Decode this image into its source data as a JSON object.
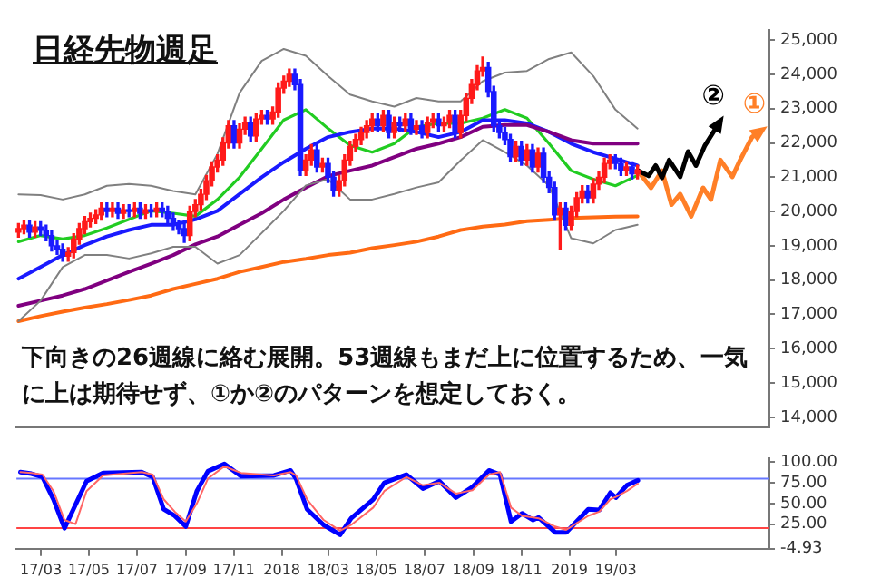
{
  "chart_data": [
    {
      "type": "candlestick",
      "title": "日経先物週足",
      "annotations": [
        "下向きの26週線に絡む展開。53週線もまだ上に位置するため、一気に上は期待せず、①か②のパターンを想定しておく。"
      ],
      "tick_labels": "y",
      "marker": "none",
      "xlim": [
        "2017-01-29",
        "2019-09-12"
      ],
      "ylim": [
        13700,
        25300
      ],
      "yticks": [
        {
          "value": 14000,
          "label": "14,000"
        },
        {
          "value": 15000,
          "label": "15,000"
        },
        {
          "value": 16000,
          "label": "16,000"
        },
        {
          "value": 17000,
          "label": "17,000"
        },
        {
          "value": 18000,
          "label": "18,000"
        },
        {
          "value": 19000,
          "label": "19,000"
        },
        {
          "value": 20000,
          "label": "20,000"
        },
        {
          "value": 21000,
          "label": "21,000"
        },
        {
          "value": 22000,
          "label": "22,000"
        },
        {
          "value": 23000,
          "label": "23,000"
        },
        {
          "value": 24000,
          "label": "24,000"
        },
        {
          "value": 25000,
          "label": "25,000"
        }
      ],
      "x": [
        "2017-02-03",
        "2017-02-10",
        "2017-02-17",
        "2017-02-24",
        "2017-03-03",
        "2017-03-10",
        "2017-03-17",
        "2017-03-24",
        "2017-03-31",
        "2017-04-07",
        "2017-04-14",
        "2017-04-21",
        "2017-04-28",
        "2017-05-05",
        "2017-05-12",
        "2017-05-19",
        "2017-05-26",
        "2017-06-02",
        "2017-06-09",
        "2017-06-16",
        "2017-06-23",
        "2017-06-30",
        "2017-07-07",
        "2017-07-14",
        "2017-07-21",
        "2017-07-28",
        "2017-08-04",
        "2017-08-11",
        "2017-08-18",
        "2017-08-25",
        "2017-09-01",
        "2017-09-08",
        "2017-09-15",
        "2017-09-22",
        "2017-09-29",
        "2017-10-06",
        "2017-10-13",
        "2017-10-20",
        "2017-10-27",
        "2017-11-03",
        "2017-11-10",
        "2017-11-17",
        "2017-11-24",
        "2017-12-01",
        "2017-12-08",
        "2017-12-15",
        "2017-12-22",
        "2017-12-29",
        "2018-01-05",
        "2018-01-12",
        "2018-01-19",
        "2018-01-26",
        "2018-02-02",
        "2018-02-09",
        "2018-02-16",
        "2018-02-23",
        "2018-03-02",
        "2018-03-09",
        "2018-03-16",
        "2018-03-23",
        "2018-03-30",
        "2018-04-06",
        "2018-04-13",
        "2018-04-20",
        "2018-04-27",
        "2018-05-04",
        "2018-05-11",
        "2018-05-18",
        "2018-05-25",
        "2018-06-01",
        "2018-06-08",
        "2018-06-15",
        "2018-06-22",
        "2018-06-29",
        "2018-07-06",
        "2018-07-13",
        "2018-07-20",
        "2018-07-27",
        "2018-08-03",
        "2018-08-10",
        "2018-08-17",
        "2018-08-24",
        "2018-08-31",
        "2018-09-07",
        "2018-09-14",
        "2018-09-21",
        "2018-09-28",
        "2018-10-05",
        "2018-10-12",
        "2018-10-19",
        "2018-10-26",
        "2018-11-02",
        "2018-11-09",
        "2018-11-16",
        "2018-11-23",
        "2018-11-30",
        "2018-12-07",
        "2018-12-14",
        "2018-12-21",
        "2018-12-28",
        "2019-01-04",
        "2019-01-11",
        "2019-01-18",
        "2019-01-25",
        "2019-02-01",
        "2019-02-08",
        "2019-02-15",
        "2019-02-22",
        "2019-03-01",
        "2019-03-08",
        "2019-03-15",
        "2019-03-22",
        "2019-03-29"
      ],
      "ohlc": [
        [
          19400,
          19650,
          19250,
          19500
        ],
        [
          19500,
          19750,
          19350,
          19600
        ],
        [
          19600,
          19750,
          19250,
          19400
        ],
        [
          19400,
          19700,
          19250,
          19550
        ],
        [
          19550,
          19700,
          19300,
          19450
        ],
        [
          19450,
          19600,
          19150,
          19300
        ],
        [
          19300,
          19450,
          18850,
          19000
        ],
        [
          19000,
          19150,
          18750,
          18900
        ],
        [
          18900,
          19050,
          18550,
          18700
        ],
        [
          18700,
          18950,
          18550,
          18800
        ],
        [
          18800,
          19350,
          18650,
          19200
        ],
        [
          19200,
          19650,
          19050,
          19500
        ],
        [
          19500,
          19850,
          19350,
          19700
        ],
        [
          19700,
          19950,
          19550,
          19800
        ],
        [
          19800,
          20050,
          19650,
          19900
        ],
        [
          19900,
          20250,
          19750,
          20100
        ],
        [
          20100,
          20250,
          19850,
          20000
        ],
        [
          20000,
          20250,
          19850,
          20100
        ],
        [
          20100,
          20250,
          19800,
          19950
        ],
        [
          19950,
          20200,
          19800,
          20050
        ],
        [
          20050,
          20200,
          19850,
          20000
        ],
        [
          20000,
          20250,
          19850,
          20100
        ],
        [
          20100,
          20250,
          19800,
          19950
        ],
        [
          19950,
          20200,
          19800,
          20050
        ],
        [
          20050,
          20200,
          19850,
          20000
        ],
        [
          20000,
          20250,
          19850,
          20100
        ],
        [
          20100,
          20250,
          19850,
          20000
        ],
        [
          20000,
          20150,
          19650,
          19800
        ],
        [
          19800,
          19950,
          19450,
          19600
        ],
        [
          19600,
          19750,
          19350,
          19500
        ],
        [
          19500,
          19650,
          19100,
          19300
        ],
        [
          19300,
          20150,
          19150,
          20000
        ],
        [
          20000,
          20350,
          19850,
          20200
        ],
        [
          20200,
          20650,
          20050,
          20500
        ],
        [
          20500,
          21050,
          20350,
          20900
        ],
        [
          20900,
          21450,
          20750,
          21300
        ],
        [
          21300,
          21650,
          21150,
          21500
        ],
        [
          21500,
          22150,
          21350,
          22000
        ],
        [
          22000,
          22650,
          21850,
          22500
        ],
        [
          22500,
          22650,
          21850,
          22000
        ],
        [
          22000,
          22550,
          21850,
          22400
        ],
        [
          22400,
          22750,
          22250,
          22600
        ],
        [
          22600,
          22750,
          22050,
          22200
        ],
        [
          22200,
          22850,
          22050,
          22700
        ],
        [
          22700,
          22950,
          22550,
          22800
        ],
        [
          22800,
          22950,
          22550,
          22700
        ],
        [
          22700,
          23050,
          22550,
          22900
        ],
        [
          22900,
          23750,
          22750,
          23600
        ],
        [
          23600,
          23950,
          23450,
          23800
        ],
        [
          23800,
          24150,
          23650,
          24000
        ],
        [
          24000,
          24150,
          23550,
          23700
        ],
        [
          23700,
          23850,
          21050,
          21200
        ],
        [
          21200,
          21650,
          21050,
          21500
        ],
        [
          21500,
          21950,
          21350,
          21800
        ],
        [
          21800,
          21950,
          21150,
          21300
        ],
        [
          21300,
          21550,
          21150,
          21400
        ],
        [
          21400,
          21550,
          20850,
          21000
        ],
        [
          21000,
          21150,
          20450,
          20600
        ],
        [
          20600,
          21050,
          20450,
          20900
        ],
        [
          20900,
          21650,
          20750,
          21500
        ],
        [
          21500,
          22050,
          21350,
          21900
        ],
        [
          21900,
          22250,
          21750,
          22100
        ],
        [
          22100,
          22450,
          21950,
          22300
        ],
        [
          22300,
          22650,
          22150,
          22500
        ],
        [
          22500,
          22850,
          22350,
          22700
        ],
        [
          22700,
          22850,
          22350,
          22500
        ],
        [
          22500,
          22950,
          22350,
          22800
        ],
        [
          22800,
          22950,
          22150,
          22300
        ],
        [
          22300,
          22750,
          22150,
          22600
        ],
        [
          22600,
          22750,
          22350,
          22500
        ],
        [
          22500,
          22850,
          22350,
          22700
        ],
        [
          22700,
          22850,
          22250,
          22400
        ],
        [
          22400,
          22650,
          22250,
          22500
        ],
        [
          22500,
          22650,
          22150,
          22300
        ],
        [
          22300,
          22750,
          22150,
          22600
        ],
        [
          22600,
          22850,
          22450,
          22700
        ],
        [
          22700,
          22850,
          22350,
          22500
        ],
        [
          22500,
          22750,
          22350,
          22600
        ],
        [
          22600,
          22950,
          22450,
          22800
        ],
        [
          22800,
          22950,
          22150,
          22300
        ],
        [
          22300,
          22950,
          22150,
          22800
        ],
        [
          22800,
          23450,
          22650,
          23300
        ],
        [
          23300,
          23850,
          23150,
          23700
        ],
        [
          23700,
          24250,
          23550,
          24100
        ],
        [
          24100,
          24500,
          23950,
          24200
        ],
        [
          24200,
          24350,
          23350,
          23500
        ],
        [
          23500,
          23650,
          22350,
          22500
        ],
        [
          22500,
          22650,
          22150,
          22300
        ],
        [
          22300,
          22450,
          21950,
          22100
        ],
        [
          22100,
          22250,
          21450,
          21600
        ],
        [
          21600,
          22050,
          21450,
          21900
        ],
        [
          21900,
          22050,
          21350,
          21500
        ],
        [
          21500,
          21950,
          21350,
          21800
        ],
        [
          21800,
          21950,
          21150,
          21300
        ],
        [
          21300,
          21850,
          21150,
          21700
        ],
        [
          21700,
          21850,
          20850,
          21000
        ],
        [
          21000,
          21150,
          20550,
          20700
        ],
        [
          20700,
          20850,
          19750,
          19900
        ],
        [
          19900,
          20250,
          18900,
          20100
        ],
        [
          20100,
          20250,
          19450,
          19600
        ],
        [
          19600,
          20150,
          19450,
          20000
        ],
        [
          20000,
          20550,
          19850,
          20400
        ],
        [
          20400,
          20750,
          20250,
          20600
        ],
        [
          20600,
          20750,
          20250,
          20400
        ],
        [
          20400,
          20950,
          20250,
          20800
        ],
        [
          20800,
          21150,
          20650,
          21000
        ],
        [
          21000,
          21550,
          20850,
          21400
        ],
        [
          21400,
          21650,
          21250,
          21500
        ],
        [
          21500,
          21650,
          21250,
          21400
        ],
        [
          21400,
          21550,
          21050,
          21200
        ],
        [
          21200,
          21450,
          21050,
          21300
        ],
        [
          21300,
          21450,
          20950,
          21100
        ],
        [
          21100,
          21350,
          20950,
          21200
        ]
      ],
      "colors": [
        "#ff1a1a",
        "#ff1a1a",
        "#1a1aff",
        "#ff1a1a",
        "#1a1aff",
        "#1a1aff",
        "#1a1aff",
        "#1a1aff",
        "#1a1aff",
        "#ff1a1a",
        "#ff1a1a",
        "#ff1a1a",
        "#ff1a1a",
        "#ff1a1a",
        "#ff1a1a",
        "#ff1a1a",
        "#1a1aff",
        "#ff1a1a",
        "#1a1aff",
        "#ff1a1a",
        "#1a1aff",
        "#ff1a1a",
        "#1a1aff",
        "#ff1a1a",
        "#1a1aff",
        "#ff1a1a",
        "#1a1aff",
        "#1a1aff",
        "#1a1aff",
        "#1a1aff",
        "#1a1aff",
        "#ff1a1a",
        "#ff1a1a",
        "#ff1a1a",
        "#ff1a1a",
        "#ff1a1a",
        "#ff1a1a",
        "#ff1a1a",
        "#ff1a1a",
        "#1a1aff",
        "#ff1a1a",
        "#ff1a1a",
        "#1a1aff",
        "#ff1a1a",
        "#ff1a1a",
        "#1a1aff",
        "#ff1a1a",
        "#ff1a1a",
        "#ff1a1a",
        "#ff1a1a",
        "#1a1aff",
        "#1a1aff",
        "#ff1a1a",
        "#ff1a1a",
        "#1a1aff",
        "#ff1a1a",
        "#1a1aff",
        "#1a1aff",
        "#ff1a1a",
        "#ff1a1a",
        "#ff1a1a",
        "#ff1a1a",
        "#ff1a1a",
        "#ff1a1a",
        "#ff1a1a",
        "#1a1aff",
        "#ff1a1a",
        "#1a1aff",
        "#ff1a1a",
        "#1a1aff",
        "#ff1a1a",
        "#1a1aff",
        "#ff1a1a",
        "#1a1aff",
        "#ff1a1a",
        "#ff1a1a",
        "#1a1aff",
        "#ff1a1a",
        "#ff1a1a",
        "#1a1aff",
        "#ff1a1a",
        "#ff1a1a",
        "#ff1a1a",
        "#ff1a1a",
        "#ff1a1a",
        "#1a1aff",
        "#1a1aff",
        "#1a1aff",
        "#1a1aff",
        "#1a1aff",
        "#ff1a1a",
        "#1a1aff",
        "#ff1a1a",
        "#1a1aff",
        "#ff1a1a",
        "#1a1aff",
        "#1a1aff",
        "#1a1aff",
        "#ff1a1a",
        "#1a1aff",
        "#ff1a1a",
        "#ff1a1a",
        "#ff1a1a",
        "#1a1aff",
        "#ff1a1a",
        "#ff1a1a",
        "#ff1a1a",
        "#ff1a1a",
        "#1a1aff",
        "#1a1aff",
        "#ff1a1a",
        "#1a1aff",
        "#ff1a1a"
      ],
      "series": [
        {
          "type": "line",
          "color": "#808080",
          "x": [
            "2017-02-03",
            "2017-03-03",
            "2017-03-31",
            "2017-04-28",
            "2017-05-26",
            "2017-06-23",
            "2017-07-21",
            "2017-08-18",
            "2017-09-15",
            "2017-10-13",
            "2017-11-10",
            "2017-12-08",
            "2018-01-05",
            "2018-02-02",
            "2018-03-02",
            "2018-03-30",
            "2018-04-27",
            "2018-05-25",
            "2018-06-22",
            "2018-07-20",
            "2018-08-17",
            "2018-09-14",
            "2018-10-12",
            "2018-11-09",
            "2018-12-07",
            "2019-01-04",
            "2019-02-01",
            "2019-03-01",
            "2019-03-29"
          ],
          "values": [
            20500,
            20480,
            20350,
            20500,
            20750,
            20800,
            20750,
            20600,
            20500,
            21680,
            23460,
            24390,
            24740,
            24540,
            23950,
            23410,
            23210,
            23060,
            23310,
            23210,
            23210,
            23800,
            24050,
            24100,
            24450,
            24640,
            23950,
            22970,
            22420
          ]
        },
        {
          "type": "line",
          "color": "#808080",
          "x": [
            "2017-02-03",
            "2017-03-03",
            "2017-03-31",
            "2017-04-28",
            "2017-05-26",
            "2017-06-23",
            "2017-07-21",
            "2017-08-18",
            "2017-09-15",
            "2017-10-13",
            "2017-11-10",
            "2017-12-08",
            "2018-01-05",
            "2018-02-02",
            "2018-03-02",
            "2018-03-30",
            "2018-04-27",
            "2018-05-25",
            "2018-06-22",
            "2018-07-20",
            "2018-08-17",
            "2018-09-14",
            "2018-10-12",
            "2018-11-09",
            "2018-12-07",
            "2019-01-04",
            "2019-02-01",
            "2019-03-01",
            "2019-03-29"
          ],
          "values": [
            16800,
            17400,
            18380,
            18730,
            18730,
            18630,
            18780,
            18970,
            18970,
            18480,
            18730,
            19370,
            20020,
            20760,
            20940,
            20350,
            20350,
            20510,
            20700,
            20850,
            21490,
            22080,
            21730,
            21340,
            20750,
            19220,
            19070,
            19460,
            19610
          ]
        },
        {
          "type": "line",
          "color": "#ff6a13",
          "x": [
            "2017-02-03",
            "2017-03-03",
            "2017-03-31",
            "2017-04-28",
            "2017-05-26",
            "2017-06-23",
            "2017-07-21",
            "2017-08-18",
            "2017-09-15",
            "2017-10-13",
            "2017-11-10",
            "2017-12-08",
            "2018-01-05",
            "2018-02-02",
            "2018-03-02",
            "2018-03-30",
            "2018-04-27",
            "2018-05-25",
            "2018-06-22",
            "2018-07-20",
            "2018-08-17",
            "2018-09-14",
            "2018-10-12",
            "2018-11-09",
            "2018-12-07",
            "2019-01-04",
            "2019-02-01",
            "2019-03-01",
            "2019-03-29"
          ],
          "values": [
            16800,
            16950,
            17080,
            17200,
            17300,
            17420,
            17550,
            17740,
            17890,
            18040,
            18240,
            18380,
            18530,
            18620,
            18730,
            18800,
            18930,
            19020,
            19120,
            19270,
            19460,
            19560,
            19620,
            19720,
            19760,
            19810,
            19830,
            19850,
            19860
          ]
        },
        {
          "type": "line",
          "color": "#800080",
          "x": [
            "2017-02-03",
            "2017-03-03",
            "2017-03-31",
            "2017-04-28",
            "2017-05-26",
            "2017-06-23",
            "2017-07-21",
            "2017-08-18",
            "2017-09-15",
            "2017-10-13",
            "2017-11-10",
            "2017-12-08",
            "2018-01-05",
            "2018-02-02",
            "2018-03-02",
            "2018-03-30",
            "2018-04-27",
            "2018-05-25",
            "2018-06-22",
            "2018-07-20",
            "2018-08-17",
            "2018-09-14",
            "2018-10-12",
            "2018-11-09",
            "2018-12-07",
            "2019-01-04",
            "2019-02-01",
            "2019-03-01",
            "2019-03-29"
          ],
          "values": [
            17250,
            17400,
            17550,
            17740,
            17990,
            18240,
            18480,
            18730,
            19040,
            19270,
            19610,
            19950,
            20350,
            20700,
            21030,
            21190,
            21340,
            21590,
            21830,
            21980,
            22170,
            22470,
            22520,
            22520,
            22320,
            22080,
            21980,
            21980,
            21980
          ]
        },
        {
          "type": "line",
          "color": "#1a1aff",
          "x": [
            "2017-02-03",
            "2017-03-03",
            "2017-03-31",
            "2017-04-28",
            "2017-05-26",
            "2017-06-23",
            "2017-07-21",
            "2017-08-18",
            "2017-09-15",
            "2017-10-13",
            "2017-11-10",
            "2017-12-08",
            "2018-01-05",
            "2018-02-02",
            "2018-03-02",
            "2018-03-30",
            "2018-04-27",
            "2018-05-25",
            "2018-06-22",
            "2018-07-20",
            "2018-08-17",
            "2018-09-14",
            "2018-10-12",
            "2018-11-09",
            "2018-12-07",
            "2019-01-04",
            "2019-02-01",
            "2019-03-01",
            "2019-03-29"
          ],
          "values": [
            18040,
            18380,
            18730,
            19020,
            19270,
            19460,
            19610,
            19610,
            19770,
            20020,
            20510,
            21000,
            21440,
            21830,
            22170,
            22320,
            22420,
            22420,
            22320,
            22170,
            22320,
            22660,
            22660,
            22570,
            22320,
            21980,
            21730,
            21540,
            21340
          ]
        },
        {
          "type": "line",
          "color": "#22cc22",
          "x": [
            "2017-02-03",
            "2017-03-03",
            "2017-03-31",
            "2017-04-28",
            "2017-05-26",
            "2017-06-23",
            "2017-07-21",
            "2017-08-18",
            "2017-09-15",
            "2017-10-13",
            "2017-11-10",
            "2017-12-08",
            "2018-01-05",
            "2018-02-02",
            "2018-03-02",
            "2018-03-30",
            "2018-04-27",
            "2018-05-25",
            "2018-06-22",
            "2018-07-20",
            "2018-08-17",
            "2018-09-14",
            "2018-10-12",
            "2018-11-09",
            "2018-12-07",
            "2019-01-04",
            "2019-02-01",
            "2019-03-01",
            "2019-03-29"
          ],
          "values": [
            19120,
            19300,
            19200,
            19300,
            19520,
            19770,
            20020,
            19950,
            19860,
            20350,
            21000,
            21830,
            22670,
            22970,
            22420,
            21930,
            21730,
            21980,
            22470,
            22570,
            22570,
            22720,
            22970,
            22720,
            21980,
            21190,
            20940,
            20750,
            21050
          ]
        },
        {
          "type": "line",
          "name": "②",
          "color": "#000000",
          "x": [
            "2019-03-29",
            "2019-04-12",
            "2019-04-21",
            "2019-04-29",
            "2019-05-08",
            "2019-05-22",
            "2019-06-01",
            "2019-06-11",
            "2019-06-22",
            "2019-07-10"
          ],
          "values": [
            21200,
            21040,
            21340,
            20980,
            21500,
            21010,
            21750,
            21340,
            21910,
            22570
          ]
        },
        {
          "type": "line",
          "name": "①",
          "color": "#ff7f27",
          "x": [
            "2019-03-29",
            "2019-04-15",
            "2019-04-29",
            "2019-05-11",
            "2019-05-22",
            "2019-06-05",
            "2019-06-20",
            "2019-06-30",
            "2019-07-12",
            "2019-07-27",
            "2019-08-06",
            "2019-08-21",
            "2019-08-31"
          ],
          "values": [
            21200,
            20690,
            21190,
            20200,
            20510,
            19860,
            20690,
            20350,
            21500,
            21010,
            21500,
            22170,
            22330
          ]
        }
      ]
    },
    {
      "type": "line",
      "marker": "none",
      "xlim": [
        "2017-01-29",
        "2019-09-12"
      ],
      "ylim": [
        -4.93,
        105
      ],
      "xticks": [
        {
          "value": "2017-03-01",
          "label": "17/03"
        },
        {
          "value": "2017-05-01",
          "label": "17/05"
        },
        {
          "value": "2017-07-01",
          "label": "17/07"
        },
        {
          "value": "2017-09-01",
          "label": "17/09"
        },
        {
          "value": "2017-11-01",
          "label": "17/11"
        },
        {
          "value": "2018-01-01",
          "label": "2018"
        },
        {
          "value": "2018-03-01",
          "label": "18/03"
        },
        {
          "value": "2018-05-01",
          "label": "18/05"
        },
        {
          "value": "2018-07-01",
          "label": "18/07"
        },
        {
          "value": "2018-09-01",
          "label": "18/09"
        },
        {
          "value": "2018-11-01",
          "label": "18/11"
        },
        {
          "value": "2019-01-01",
          "label": "2019"
        },
        {
          "value": "2019-03-01",
          "label": "19/03"
        }
      ],
      "yticks": [
        {
          "value": -4.93,
          "label": "-4.93"
        },
        {
          "value": 25,
          "label": "25.00"
        },
        {
          "value": 50,
          "label": "50.00"
        },
        {
          "value": 75,
          "label": "75.00"
        },
        {
          "value": 100,
          "label": "100.00"
        }
      ],
      "ref_lines": [
        {
          "axis": "y",
          "value": 80,
          "color": "#6677ff"
        },
        {
          "axis": "y",
          "value": 20,
          "color": "#ff4444"
        }
      ],
      "series": [
        {
          "color": "#ff6666",
          "x": [
            "2017-02-03",
            "2017-02-17",
            "2017-03-03",
            "2017-03-17",
            "2017-03-31",
            "2017-04-14",
            "2017-04-28",
            "2017-05-19",
            "2017-07-07",
            "2017-07-21",
            "2017-08-04",
            "2017-08-18",
            "2017-09-01",
            "2017-09-15",
            "2017-09-29",
            "2017-10-20",
            "2017-11-10",
            "2017-12-22",
            "2018-01-12",
            "2018-01-19",
            "2018-02-02",
            "2018-02-23",
            "2018-03-16",
            "2018-03-30",
            "2018-04-27",
            "2018-05-11",
            "2018-06-08",
            "2018-06-29",
            "2018-07-20",
            "2018-08-10",
            "2018-08-31",
            "2018-09-21",
            "2018-10-05",
            "2018-10-19",
            "2018-11-02",
            "2018-11-16",
            "2018-11-23",
            "2018-12-14",
            "2018-12-28",
            "2019-01-25",
            "2019-02-08",
            "2019-02-22",
            "2019-03-01",
            "2019-03-15",
            "2019-03-29"
          ],
          "values": [
            88,
            87,
            85,
            65,
            30,
            25,
            65,
            84,
            88,
            85,
            55,
            40,
            28,
            50,
            80,
            95,
            87,
            84,
            88,
            84,
            55,
            30,
            17,
            24,
            45,
            65,
            82,
            72,
            75,
            62,
            66,
            85,
            88,
            45,
            35,
            33,
            32,
            22,
            18,
            35,
            40,
            55,
            58,
            65,
            74
          ]
        },
        {
          "color": "#0000ff",
          "x": [
            "2017-02-03",
            "2017-02-17",
            "2017-03-03",
            "2017-03-17",
            "2017-03-31",
            "2017-04-28",
            "2017-05-19",
            "2017-07-07",
            "2017-07-21",
            "2017-08-04",
            "2017-08-18",
            "2017-09-01",
            "2017-09-15",
            "2017-09-29",
            "2017-10-20",
            "2017-11-10",
            "2017-12-22",
            "2018-01-12",
            "2018-01-19",
            "2018-02-02",
            "2018-02-23",
            "2018-03-16",
            "2018-03-30",
            "2018-04-27",
            "2018-05-11",
            "2018-06-08",
            "2018-06-29",
            "2018-07-20",
            "2018-08-10",
            "2018-08-31",
            "2018-09-21",
            "2018-10-05",
            "2018-10-19",
            "2018-11-02",
            "2018-11-16",
            "2018-11-23",
            "2018-12-14",
            "2018-12-28",
            "2019-01-25",
            "2019-02-08",
            "2019-02-22",
            "2019-03-01",
            "2019-03-15",
            "2019-03-29"
          ],
          "values": [
            88,
            86,
            82,
            55,
            20,
            77,
            87,
            88,
            82,
            43,
            35,
            22,
            65,
            89,
            98,
            83,
            84,
            90,
            80,
            43,
            24,
            12,
            32,
            55,
            75,
            85,
            68,
            77,
            57,
            70,
            90,
            85,
            28,
            38,
            30,
            33,
            15,
            15,
            43,
            42,
            63,
            57,
            72,
            78
          ]
        }
      ]
    }
  ]
}
